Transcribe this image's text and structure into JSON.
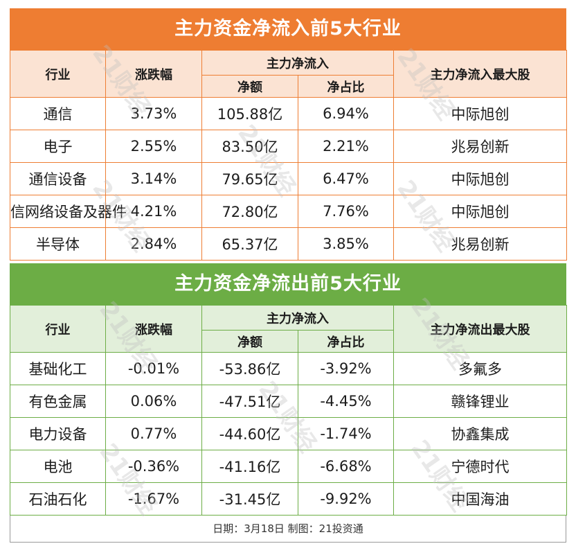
{
  "inflow": {
    "title": "主力资金净流入前5大行业",
    "headers": {
      "industry": "行业",
      "change": "涨跌幅",
      "group": "主力净流入",
      "net": "净额",
      "ratio": "净占比",
      "top": "主力净流入最大股"
    },
    "rows": [
      {
        "industry": "通信",
        "change": "3.73%",
        "net": "105.88亿",
        "ratio": "6.94%",
        "top": "中际旭创"
      },
      {
        "industry": "电子",
        "change": "2.55%",
        "net": "83.50亿",
        "ratio": "2.21%",
        "top": "兆易创新"
      },
      {
        "industry": "通信设备",
        "change": "3.14%",
        "net": "79.65亿",
        "ratio": "6.47%",
        "top": "中际旭创"
      },
      {
        "industry": "信网络设备及器件",
        "change": "4.21%",
        "net": "72.80亿",
        "ratio": "7.76%",
        "top": "中际旭创"
      },
      {
        "industry": "半导体",
        "change": "2.84%",
        "net": "65.37亿",
        "ratio": "3.85%",
        "top": "兆易创新"
      }
    ]
  },
  "outflow": {
    "title": "主力资金净流出前5大行业",
    "headers": {
      "industry": "行业",
      "change": "涨跌幅",
      "group": "主力净流入",
      "net": "净额",
      "ratio": "净占比",
      "top": "主力净流出最大股"
    },
    "rows": [
      {
        "industry": "基础化工",
        "change": "-0.01%",
        "net": "-53.86亿",
        "ratio": "-3.92%",
        "top": "多氟多"
      },
      {
        "industry": "有色金属",
        "change": "0.06%",
        "net": "-47.51亿",
        "ratio": "-4.45%",
        "top": "赣锋锂业"
      },
      {
        "industry": "电力设备",
        "change": "0.77%",
        "net": "-44.60亿",
        "ratio": "-1.74%",
        "top": "协鑫集成"
      },
      {
        "industry": "电池",
        "change": "-0.36%",
        "net": "-41.16亿",
        "ratio": "-6.68%",
        "top": "宁德时代"
      },
      {
        "industry": "石油石化",
        "change": "-1.67%",
        "net": "-31.45亿",
        "ratio": "-9.92%",
        "top": "中国海油"
      }
    ]
  },
  "footer": "日期：3月18日 制图：21投资通",
  "watermark": "21财经",
  "colors": {
    "inflow_accent": "#ee7d32",
    "outflow_accent": "#6cad45"
  }
}
